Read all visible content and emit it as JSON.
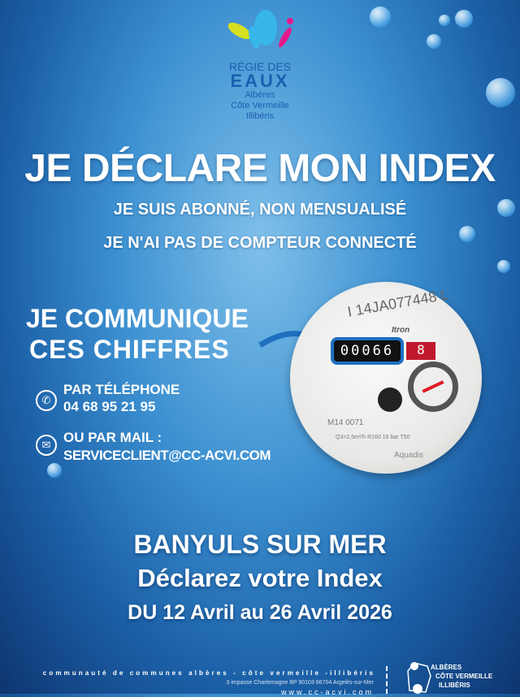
{
  "logo": {
    "line1": "RÉGIE DES",
    "line2": "EAUX",
    "line3": "Albères",
    "line4": "Côte Vermeille",
    "line5": "Illibéris"
  },
  "title": "JE DÉCLARE MON INDEX",
  "subtitle1": "JE SUIS ABONNÉ, NON MENSUALISÉ",
  "subtitle2": "JE  N'AI PAS DE COMPTEUR CONNECTÉ",
  "communicate": {
    "line1": "JE COMMUNIQUE",
    "line2": "CES CHIFFRES"
  },
  "meter": {
    "serial": "I 14JA077448 L",
    "digits": "00066",
    "red_digits": "8",
    "brand": "Itron",
    "marking": "M14 0071",
    "spec": "Q3=2,5m³/h R160 16 bar T50",
    "maker": "Aquadis"
  },
  "phone": {
    "icon": "phone-icon",
    "label": "PAR TÉLÉPHONE",
    "number": "04 68 95 21 95"
  },
  "mail": {
    "icon": "mail-icon",
    "label": "OU PAR MAIL :",
    "address": "SERVICECLIENT@CC-ACVI.COM"
  },
  "town": "BANYULS SUR MER",
  "declare": "Déclarez votre Index",
  "dates": "DU 12 Avril au 26 Avril 2026",
  "footer": {
    "org": "communauté de communes albères - côte vermeille -illibéris",
    "address": "3 impasse Charlemagne BP 90103 66704 Argelès-sur-Mer",
    "website": "www.cc-acvi.com",
    "logo1": "ALBÈRES",
    "logo2": "CÔTE VERMEILLE",
    "logo3": "ILLIBÉRIS"
  }
}
